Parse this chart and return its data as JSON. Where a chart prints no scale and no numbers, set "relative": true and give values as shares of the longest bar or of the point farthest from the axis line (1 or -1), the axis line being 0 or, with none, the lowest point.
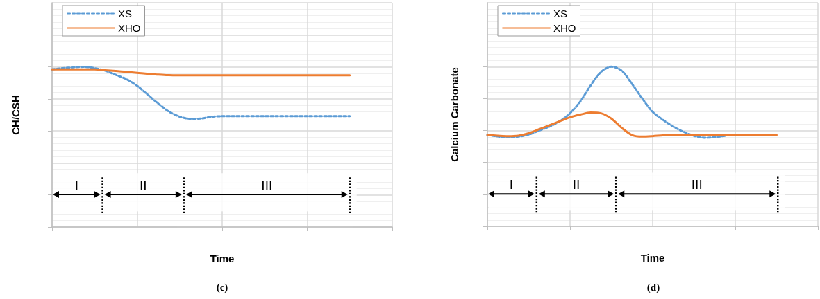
{
  "chart_data": [
    {
      "type": "line",
      "relative": true,
      "ylabel": "CH/CSH",
      "xlabel": "Time",
      "grid": true,
      "legend": "top left",
      "marker": "none",
      "categories": [
        null,
        null,
        null,
        null,
        null,
        null,
        null,
        null,
        null,
        null,
        null,
        null,
        null,
        null,
        null,
        null,
        null,
        null,
        null,
        null,
        null,
        null,
        null,
        null,
        null,
        null,
        null,
        null,
        null,
        null,
        null,
        null,
        null
      ],
      "series": [
        {
          "name": "XS",
          "color": "#5b9bd5",
          "line_style": "dashed",
          "values": [
            0.984,
            0.992,
            0.997,
            1.0,
            0.992,
            0.976,
            0.95,
            0.923,
            0.882,
            0.826,
            0.77,
            0.721,
            0.689,
            0.676,
            0.677,
            0.689,
            0.692,
            0.692,
            0.692,
            0.692,
            0.692,
            0.692,
            0.692,
            0.692,
            0.692,
            0.692,
            0.692,
            0.692,
            0.692,
            null,
            null,
            null,
            null
          ]
        },
        {
          "name": "XHO",
          "color": "#ed7d31",
          "line_style": "solid",
          "values": [
            0.984,
            0.984,
            0.984,
            0.984,
            0.984,
            0.979,
            0.974,
            0.969,
            0.963,
            0.956,
            0.952,
            0.948,
            0.947,
            0.947,
            0.947,
            0.947,
            0.947,
            0.947,
            0.947,
            0.947,
            0.947,
            0.947,
            0.947,
            0.947,
            0.947,
            0.947,
            0.947,
            0.947,
            0.947,
            null,
            null,
            null,
            null
          ]
        }
      ],
      "annotations": [
        "I",
        "II",
        "III",
        "(c)"
      ]
    },
    {
      "type": "line",
      "relative": true,
      "ylabel": "Calcium Carbonate",
      "xlabel": "Time",
      "grid": true,
      "legend": "top left",
      "marker": "none",
      "categories": [
        null,
        null,
        null,
        null,
        null,
        null,
        null,
        null,
        null,
        null,
        null,
        null,
        null,
        null,
        null,
        null,
        null,
        null,
        null,
        null,
        null,
        null,
        null,
        null,
        null,
        null,
        null,
        null,
        null,
        null,
        null,
        null,
        null
      ],
      "series": [
        {
          "name": "XS",
          "color": "#5b9bd5",
          "line_style": "dashed",
          "values": [
            0.572,
            0.563,
            0.558,
            0.562,
            0.575,
            0.6,
            0.625,
            0.658,
            0.708,
            0.783,
            0.883,
            0.967,
            1.0,
            0.975,
            0.892,
            0.8,
            0.717,
            0.667,
            0.625,
            0.592,
            0.567,
            0.555,
            0.558,
            0.567,
            null,
            null,
            null,
            null,
            null,
            null,
            null,
            null,
            null
          ]
        },
        {
          "name": "XHO",
          "color": "#ed7d31",
          "line_style": "solid",
          "values": [
            0.572,
            0.568,
            0.565,
            0.568,
            0.583,
            0.608,
            0.633,
            0.658,
            0.683,
            0.7,
            0.713,
            0.708,
            0.675,
            0.617,
            0.572,
            0.562,
            0.565,
            0.57,
            0.572,
            0.572,
            0.572,
            0.572,
            0.572,
            0.572,
            0.572,
            0.572,
            0.572,
            0.572,
            0.572,
            null,
            null,
            null,
            null
          ]
        }
      ],
      "annotations": [
        "I",
        "II",
        "III",
        "(d)"
      ]
    }
  ]
}
